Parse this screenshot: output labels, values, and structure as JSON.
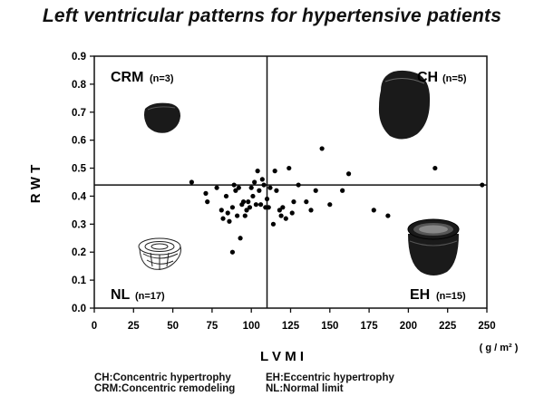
{
  "title": "Left ventricular patterns for hypertensive patients",
  "chart_data": {
    "type": "scatter",
    "title": "Left ventricular patterns for hypertensive patients",
    "xlabel": "L V M I",
    "xunit": "( g / m² )",
    "ylabel": "R W T",
    "xlim": [
      0,
      250
    ],
    "ylim": [
      0.0,
      0.9
    ],
    "xticks": [
      0,
      25,
      50,
      75,
      100,
      125,
      150,
      175,
      200,
      225,
      250
    ],
    "xtick_labels": [
      "0",
      "25",
      "50",
      "75",
      "100",
      "125",
      "150",
      "175",
      "200",
      "225",
      "250"
    ],
    "yticks": [
      0.0,
      0.1,
      0.2,
      0.3,
      0.4,
      0.5,
      0.6,
      0.7,
      0.8,
      0.9
    ],
    "ytick_labels": [
      "0.0",
      "0.1",
      "0.2",
      "0.3",
      "0.4",
      "0.5",
      "0.6",
      "0.7",
      "0.8",
      "0.9"
    ],
    "reference_lines": {
      "x": 110,
      "y": 0.44
    },
    "quadrants": [
      {
        "code": "CRM",
        "n": "(n=3)",
        "position": "top-left"
      },
      {
        "code": "CH",
        "n": "(n=5)",
        "position": "top-right"
      },
      {
        "code": "NL",
        "n": "(n=17)",
        "position": "bottom-left"
      },
      {
        "code": "EH",
        "n": "(n=15)",
        "position": "bottom-right"
      }
    ],
    "points": [
      {
        "x": 62,
        "y": 0.45
      },
      {
        "x": 71,
        "y": 0.41
      },
      {
        "x": 72,
        "y": 0.38
      },
      {
        "x": 78,
        "y": 0.43
      },
      {
        "x": 81,
        "y": 0.35
      },
      {
        "x": 82,
        "y": 0.32
      },
      {
        "x": 84,
        "y": 0.4
      },
      {
        "x": 85,
        "y": 0.34
      },
      {
        "x": 86,
        "y": 0.31
      },
      {
        "x": 88,
        "y": 0.36
      },
      {
        "x": 88,
        "y": 0.2
      },
      {
        "x": 89,
        "y": 0.44
      },
      {
        "x": 90,
        "y": 0.42
      },
      {
        "x": 91,
        "y": 0.33
      },
      {
        "x": 92,
        "y": 0.43
      },
      {
        "x": 93,
        "y": 0.25
      },
      {
        "x": 94,
        "y": 0.37
      },
      {
        "x": 95,
        "y": 0.38
      },
      {
        "x": 96,
        "y": 0.33
      },
      {
        "x": 97,
        "y": 0.35
      },
      {
        "x": 98,
        "y": 0.38
      },
      {
        "x": 99,
        "y": 0.36
      },
      {
        "x": 100,
        "y": 0.43
      },
      {
        "x": 101,
        "y": 0.4
      },
      {
        "x": 102,
        "y": 0.45
      },
      {
        "x": 103,
        "y": 0.37
      },
      {
        "x": 104,
        "y": 0.49
      },
      {
        "x": 105,
        "y": 0.42
      },
      {
        "x": 106,
        "y": 0.37
      },
      {
        "x": 107,
        "y": 0.46
      },
      {
        "x": 108,
        "y": 0.44
      },
      {
        "x": 109,
        "y": 0.36
      },
      {
        "x": 110,
        "y": 0.39
      },
      {
        "x": 111,
        "y": 0.36
      },
      {
        "x": 112,
        "y": 0.43
      },
      {
        "x": 114,
        "y": 0.3
      },
      {
        "x": 115,
        "y": 0.49
      },
      {
        "x": 116,
        "y": 0.42
      },
      {
        "x": 118,
        "y": 0.35
      },
      {
        "x": 119,
        "y": 0.33
      },
      {
        "x": 120,
        "y": 0.36
      },
      {
        "x": 122,
        "y": 0.32
      },
      {
        "x": 124,
        "y": 0.5
      },
      {
        "x": 126,
        "y": 0.34
      },
      {
        "x": 127,
        "y": 0.38
      },
      {
        "x": 130,
        "y": 0.44
      },
      {
        "x": 135,
        "y": 0.38
      },
      {
        "x": 138,
        "y": 0.35
      },
      {
        "x": 141,
        "y": 0.42
      },
      {
        "x": 145,
        "y": 0.57
      },
      {
        "x": 150,
        "y": 0.37
      },
      {
        "x": 158,
        "y": 0.42
      },
      {
        "x": 162,
        "y": 0.48
      },
      {
        "x": 178,
        "y": 0.35
      },
      {
        "x": 187,
        "y": 0.33
      },
      {
        "x": 217,
        "y": 0.5
      },
      {
        "x": 247,
        "y": 0.44
      }
    ]
  },
  "legend": {
    "row1_col1": "CH:Concentric hypertrophy",
    "row1_col2": "EH:Eccentric hypertrophy",
    "row2_col1": "CRM:Concentric remodeling",
    "row2_col2": "NL:Normal limit"
  }
}
